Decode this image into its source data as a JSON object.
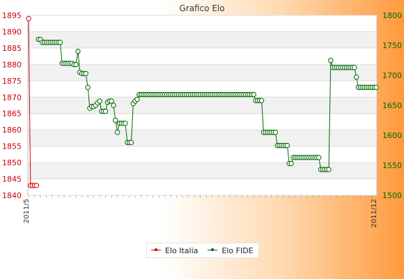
{
  "chart_data": {
    "type": "line",
    "title": "Grafico Elo",
    "xlabel": "",
    "ylabel_left": "",
    "ylabel_right": "",
    "left_axis": {
      "ylim": [
        1840,
        1895
      ],
      "ticks": [
        1840,
        1845,
        1850,
        1855,
        1860,
        1865,
        1870,
        1875,
        1880,
        1885,
        1890,
        1895
      ],
      "color": "#cc0000"
    },
    "right_axis": {
      "ylim": [
        1500,
        1800
      ],
      "ticks": [
        1500,
        1550,
        1600,
        1650,
        1700,
        1750,
        1800
      ],
      "color": "#006600"
    },
    "grid": true,
    "legend_position": "bottom-center",
    "x_ticks": [
      "2011/5",
      "2011/12"
    ],
    "series": [
      {
        "name": "Elo Italia",
        "axis": "left",
        "color": "#cc0000",
        "values": [
          1894,
          1843,
          1843,
          1843,
          1843
        ]
      },
      {
        "name": "Elo FIDE",
        "axis": "right",
        "color": "#006600",
        "values": [
          null,
          null,
          null,
          null,
          null,
          1760,
          1760,
          1755,
          1755,
          1755,
          1755,
          1755,
          1755,
          1755,
          1755,
          1755,
          1755,
          1720,
          1720,
          1720,
          1720,
          1720,
          1720,
          1718,
          1718,
          1740,
          1705,
          1703,
          1703,
          1703,
          1680,
          1645,
          1648,
          1648,
          1650,
          1654,
          1657,
          1640,
          1640,
          1640,
          1655,
          1657,
          1657,
          1650,
          1625,
          1605,
          1620,
          1620,
          1620,
          1620,
          1588,
          1588,
          1588,
          1653,
          1657,
          1660,
          1668,
          1668,
          1668,
          1668,
          1668,
          1668,
          1668,
          1668,
          1668,
          1668,
          1668,
          1668,
          1668,
          1668,
          1668,
          1668,
          1668,
          1668,
          1668,
          1668,
          1668,
          1668,
          1668,
          1668,
          1668,
          1668,
          1668,
          1668,
          1668,
          1668,
          1668,
          1668,
          1668,
          1668,
          1668,
          1668,
          1668,
          1668,
          1668,
          1668,
          1668,
          1668,
          1668,
          1668,
          1668,
          1668,
          1668,
          1668,
          1668,
          1668,
          1668,
          1668,
          1668,
          1668,
          1668,
          1668,
          1668,
          1668,
          1668,
          1658,
          1658,
          1658,
          1658,
          1605,
          1605,
          1605,
          1605,
          1605,
          1605,
          1605,
          1583,
          1583,
          1583,
          1583,
          1583,
          1583,
          1553,
          1553,
          1563,
          1563,
          1563,
          1563,
          1563,
          1563,
          1563,
          1563,
          1563,
          1563,
          1563,
          1563,
          1563,
          1563,
          1543,
          1543,
          1543,
          1543,
          1543,
          1725,
          1713,
          1713,
          1713,
          1713,
          1713,
          1713,
          1713,
          1713,
          1713,
          1713,
          1713,
          1713,
          1697,
          1680,
          1680,
          1680,
          1680,
          1680,
          1680,
          1680,
          1680,
          1680,
          1680
        ]
      }
    ]
  }
}
